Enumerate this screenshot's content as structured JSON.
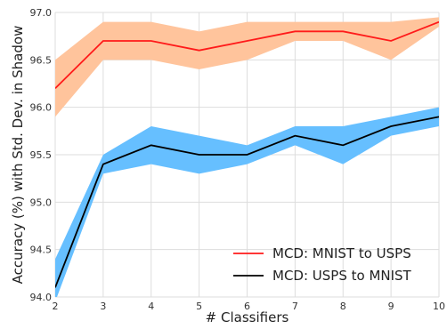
{
  "chart_data": {
    "type": "line",
    "title": "",
    "xlabel": "# Classifiers",
    "ylabel": "Accuracy (%) with Std. Dev. in Shadow",
    "x": [
      2,
      3,
      4,
      5,
      6,
      7,
      8,
      9,
      10
    ],
    "xlim": [
      2,
      10
    ],
    "ylim": [
      94.0,
      97.0
    ],
    "xticks": [
      "2",
      "3",
      "4",
      "5",
      "6",
      "7",
      "8",
      "9",
      "10"
    ],
    "yticks": [
      "94.0",
      "94.5",
      "95.0",
      "95.5",
      "96.0",
      "96.5",
      "97.0"
    ],
    "grid": true,
    "legend_position": "lower-right",
    "series": [
      {
        "name": "MCD: MNIST to USPS",
        "line_color": "#ff1a1a",
        "band_color": "#ffc49c",
        "values": [
          96.2,
          96.7,
          96.7,
          96.6,
          96.7,
          96.8,
          96.8,
          96.7,
          96.9
        ],
        "lower": [
          95.9,
          96.5,
          96.5,
          96.4,
          96.5,
          96.7,
          96.7,
          96.5,
          96.85
        ],
        "upper": [
          96.5,
          96.9,
          96.9,
          96.8,
          96.9,
          96.9,
          96.9,
          96.9,
          96.95
        ]
      },
      {
        "name": "MCD: USPS to MNIST",
        "line_color": "#000000",
        "band_color": "#66bfff",
        "values": [
          94.1,
          95.4,
          95.6,
          95.5,
          95.5,
          95.7,
          95.6,
          95.8,
          95.9
        ],
        "lower": [
          93.95,
          95.3,
          95.4,
          95.3,
          95.4,
          95.6,
          95.4,
          95.7,
          95.8
        ],
        "upper": [
          94.4,
          95.5,
          95.8,
          95.7,
          95.6,
          95.8,
          95.8,
          95.9,
          96.0
        ]
      }
    ]
  }
}
